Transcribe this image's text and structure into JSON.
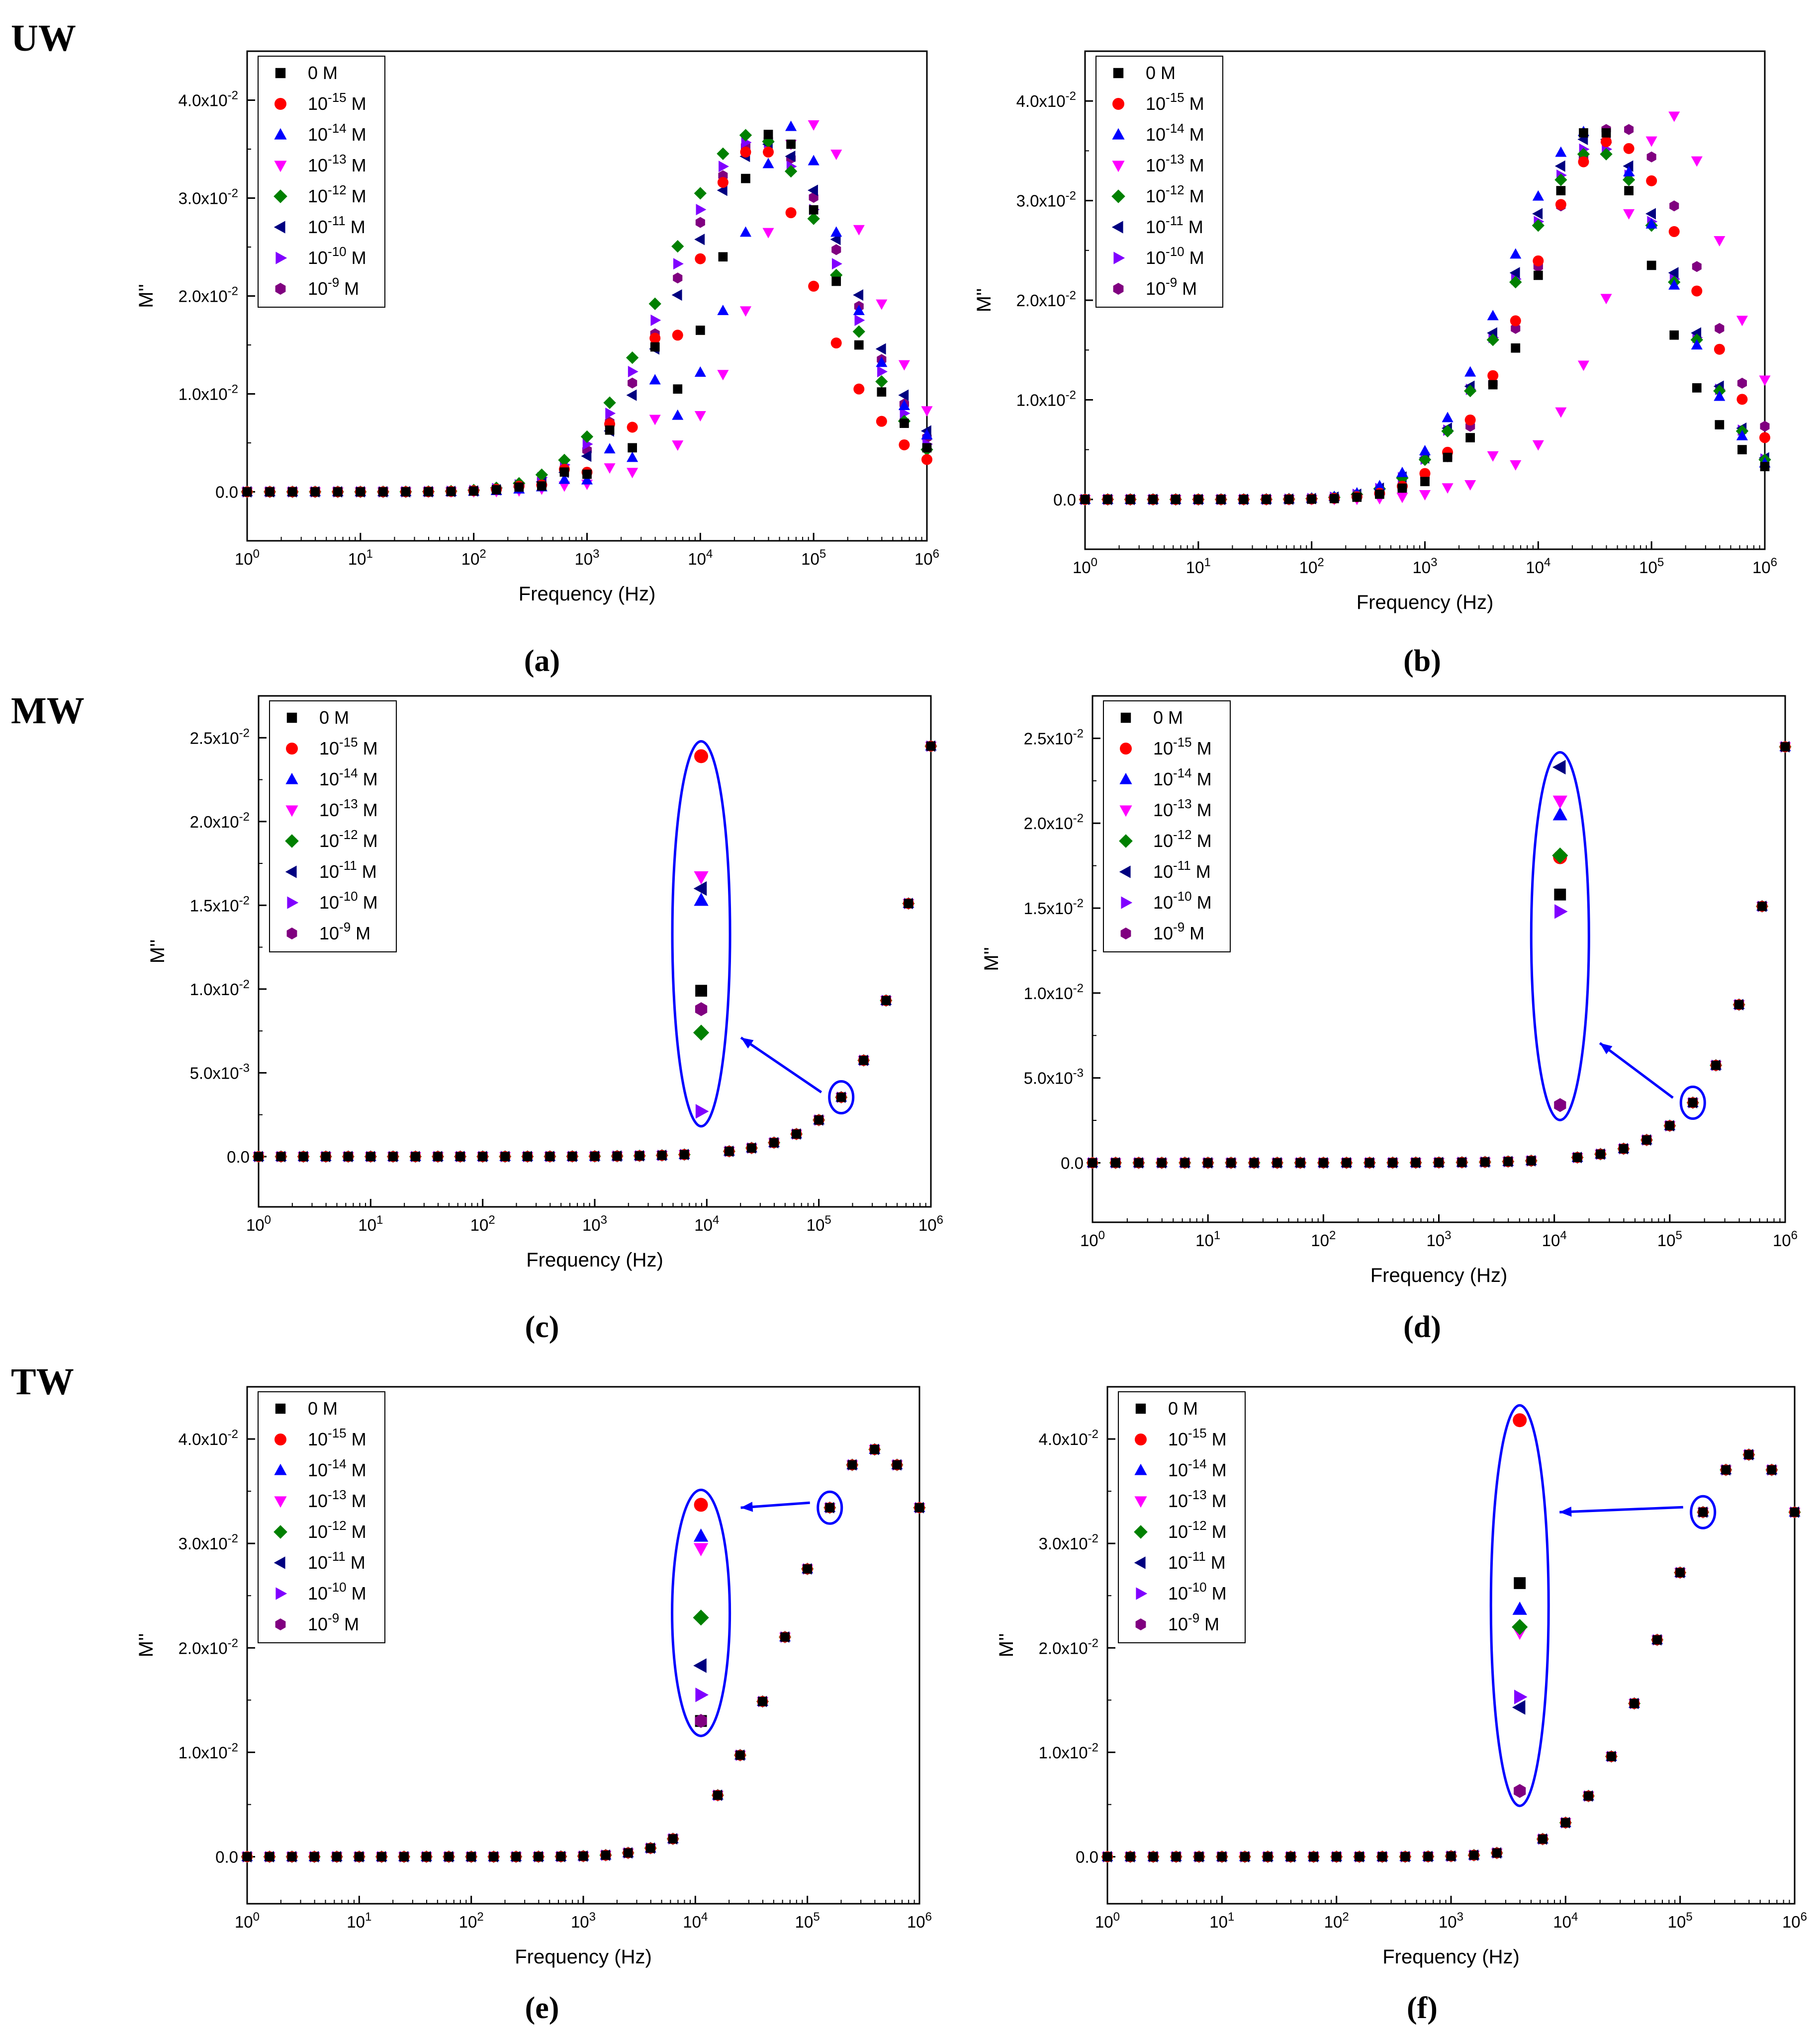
{
  "figure": {
    "row_labels": [
      "UW",
      "MW",
      "TW"
    ],
    "markers": {
      "0 M": {
        "shape": "square",
        "color": "#000000"
      },
      "10^-15 M": {
        "shape": "circle",
        "color": "#ff0000"
      },
      "10^-14 M": {
        "shape": "triangle-up",
        "color": "#0000ff"
      },
      "10^-13 M": {
        "shape": "triangle-down",
        "color": "#ff00ff"
      },
      "10^-12 M": {
        "shape": "diamond",
        "color": "#008000"
      },
      "10^-11 M": {
        "shape": "triangle-left",
        "color": "#000080"
      },
      "10^-10 M": {
        "shape": "triangle-right",
        "color": "#8000ff"
      },
      "10^-9 M": {
        "shape": "hexagon",
        "color": "#800080"
      }
    },
    "annotation_color": "#0000ff"
  },
  "chart_data": [
    {
      "type": "scatter",
      "caption": "(a)",
      "row": "UW",
      "xlabel": "Frequency (Hz)",
      "ylabel": "M''",
      "xscale": "log",
      "xlim": [
        1,
        1000000
      ],
      "ylim": [
        -0.005,
        0.045
      ],
      "yticks": [
        0,
        0.01,
        0.02,
        0.03,
        0.04
      ],
      "ytick_labels": [
        "0.0",
        "1.0x10^-2",
        "2.0x10^-2",
        "3.0x10^-2",
        "4.0x10^-2"
      ],
      "xtick_labels": [
        "10^0",
        "10^1",
        "10^2",
        "10^3",
        "10^4",
        "10^5",
        "10^6"
      ],
      "legend_position": "top-left",
      "model": {
        "kind": "peak",
        "logf_peaks": [
          4.6,
          4.55,
          4.75,
          4.95,
          4.45,
          4.6,
          4.5,
          4.55
        ],
        "heights": [
          0.036,
          0.035,
          0.037,
          0.0375,
          0.0365,
          0.0355,
          0.036,
          0.036
        ],
        "width": 0.75
      },
      "series": [
        {
          "name": "0 M",
          "x_logf": [
            2.6,
            3.0,
            3.4,
            3.8,
            4.0,
            4.2,
            4.4,
            4.6,
            4.8,
            5.0,
            5.2,
            5.4,
            5.6,
            5.8,
            6.0
          ],
          "y": [
            0.0006,
            0.0018,
            0.0045,
            0.0105,
            0.0165,
            0.024,
            0.032,
            0.0365,
            0.0355,
            0.0288,
            0.0215,
            0.015,
            0.0102,
            0.007,
            0.0045
          ]
        },
        {
          "name": "10^-15 M",
          "x_logf": [
            2.6,
            3.0,
            3.4,
            3.8,
            4.0,
            4.2,
            4.4,
            4.6,
            4.8,
            5.0,
            5.2,
            5.4,
            5.6,
            5.8,
            6.0
          ],
          "y": [
            0.0007,
            0.002,
            0.0066,
            0.016,
            0.0238,
            0.0316,
            0.0347,
            0.0347,
            0.0285,
            0.021,
            0.0152,
            0.0105,
            0.0072,
            0.0048,
            0.0033
          ]
        },
        {
          "name": "10^-14 M",
          "x_logf": [
            2.6,
            3.0,
            3.4,
            3.8,
            4.0,
            4.2,
            4.4,
            4.6,
            4.8,
            5.0,
            5.2,
            5.4,
            5.6,
            5.8,
            6.0
          ],
          "y": [
            0.0005,
            0.0012,
            0.0035,
            0.0078,
            0.0122,
            0.0185,
            0.0265,
            0.0335,
            0.0373,
            0.0338,
            0.0265,
            0.0185,
            0.0132,
            0.0088,
            0.0058
          ]
        },
        {
          "name": "10^-13 M",
          "x_logf": [
            2.6,
            3.0,
            3.4,
            3.8,
            4.0,
            4.2,
            4.4,
            4.6,
            4.8,
            5.0,
            5.2,
            5.4,
            5.6,
            5.8,
            6.0
          ],
          "y": [
            0.0003,
            0.0008,
            0.002,
            0.0048,
            0.0078,
            0.012,
            0.0185,
            0.0265,
            0.0355,
            0.0375,
            0.0345,
            0.0268,
            0.0192,
            0.013,
            0.0083
          ]
        }
      ],
      "note": "10^-12 .. 10^-9 M series follow the same trend as listed in model"
    },
    {
      "type": "scatter",
      "caption": "(b)",
      "row": "UW",
      "xlabel": "Frequency (Hz)",
      "ylabel": "M''",
      "xscale": "log",
      "xlim": [
        1,
        1000000
      ],
      "ylim": [
        -0.005,
        0.045
      ],
      "yticks": [
        0,
        0.01,
        0.02,
        0.03,
        0.04
      ],
      "ytick_labels": [
        "0.0",
        "1.0x10^-2",
        "2.0x10^-2",
        "3.0x10^-2",
        "4.0x10^-2"
      ],
      "xtick_labels": [
        "10^0",
        "10^1",
        "10^2",
        "10^3",
        "10^4",
        "10^5",
        "10^6"
      ],
      "legend_position": "top-left",
      "model": {
        "kind": "peak",
        "logf_peaks": [
          4.7,
          4.65,
          4.45,
          5.1,
          4.5,
          4.5,
          4.5,
          4.7
        ],
        "heights": [
          0.037,
          0.036,
          0.037,
          0.0385,
          0.035,
          0.0365,
          0.0355,
          0.0375
        ],
        "width": 0.72
      },
      "series": [
        {
          "name": "0 M",
          "x_logf": [
            3.0,
            3.4,
            3.8,
            4.0,
            4.2,
            4.4,
            4.6,
            4.8,
            5.0,
            5.2,
            5.4,
            5.6,
            5.8,
            6.0
          ],
          "y": [
            0.0018,
            0.0062,
            0.0152,
            0.0225,
            0.031,
            0.0368,
            0.0368,
            0.031,
            0.0235,
            0.0165,
            0.0112,
            0.0075,
            0.005,
            0.0033
          ]
        },
        {
          "name": "10^-13 M",
          "x_logf": [
            3.0,
            3.4,
            3.8,
            4.0,
            4.2,
            4.4,
            4.6,
            4.8,
            5.0,
            5.2,
            5.4,
            5.6,
            5.8,
            6.0
          ],
          "y": [
            0.0005,
            0.0015,
            0.0035,
            0.0055,
            0.0088,
            0.0135,
            0.0202,
            0.0287,
            0.036,
            0.0385,
            0.034,
            0.026,
            0.018,
            0.012
          ]
        }
      ],
      "note": "remaining series follow the same trend as listed in model"
    },
    {
      "type": "scatter",
      "caption": "(c)",
      "row": "MW",
      "xlabel": "Frequency (Hz)",
      "ylabel": "M''",
      "xscale": "log",
      "xlim": [
        1,
        1000000
      ],
      "ylim": [
        -0.003,
        0.0275
      ],
      "yticks": [
        0,
        0.005,
        0.01,
        0.015,
        0.02,
        0.025
      ],
      "ytick_labels": [
        "0.0",
        "5.0x10^-3",
        "1.0x10^-2",
        "1.5x10^-2",
        "2.0x10^-2",
        "2.5x10^-2"
      ],
      "xtick_labels": [
        "10^0",
        "10^1",
        "10^2",
        "10^3",
        "10^4",
        "10^5",
        "10^6"
      ],
      "legend_position": "top-left",
      "model": {
        "kind": "rise",
        "b": 0.0245,
        "p": 1.05
      },
      "inset": {
        "x_logf": 3.95,
        "highlight_logf": 5.2,
        "values": [
          0.0099,
          0.0239,
          0.0153,
          0.0167,
          0.0074,
          0.016,
          0.0027,
          0.0088
        ]
      }
    },
    {
      "type": "scatter",
      "caption": "(d)",
      "row": "MW",
      "xlabel": "Frequency (Hz)",
      "ylabel": "M''",
      "xscale": "log",
      "xlim": [
        1,
        1000000
      ],
      "ylim": [
        -0.0035,
        0.0275
      ],
      "yticks": [
        0,
        0.005,
        0.01,
        0.015,
        0.02,
        0.025
      ],
      "ytick_labels": [
        "0.0",
        "5.0x10^-3",
        "1.0x10^-2",
        "1.5x10^-2",
        "2.0x10^-2",
        "2.5x10^-2"
      ],
      "xtick_labels": [
        "10^0",
        "10^1",
        "10^2",
        "10^3",
        "10^4",
        "10^5",
        "10^6"
      ],
      "legend_position": "top-left",
      "model": {
        "kind": "rise",
        "b": 0.0245,
        "p": 1.05
      },
      "inset": {
        "x_logf": 4.05,
        "highlight_logf": 5.2,
        "values": [
          0.0158,
          0.018,
          0.0205,
          0.0213,
          0.0181,
          0.0233,
          0.0148,
          0.0034
        ]
      }
    },
    {
      "type": "scatter",
      "caption": "(e)",
      "row": "TW",
      "xlabel": "Frequency (Hz)",
      "ylabel": "M''",
      "xscale": "log",
      "xlim": [
        1,
        1000000
      ],
      "ylim": [
        -0.0045,
        0.045
      ],
      "yticks": [
        0,
        0.01,
        0.02,
        0.03,
        0.04
      ],
      "ytick_labels": [
        "0.0",
        "1.0x10^-2",
        "2.0x10^-2",
        "3.0x10^-2",
        "4.0x10^-2"
      ],
      "xtick_labels": [
        "10^0",
        "10^1",
        "10^2",
        "10^3",
        "10^4",
        "10^5",
        "10^6"
      ],
      "legend_position": "top-left",
      "model": {
        "kind": "peak",
        "logf_peaks": [
          5.6,
          5.6,
          5.6,
          5.6,
          5.6,
          5.6,
          5.6,
          5.6
        ],
        "heights": [
          0.039,
          0.039,
          0.039,
          0.039,
          0.039,
          0.039,
          0.039,
          0.039
        ],
        "width": 0.72
      },
      "inset": {
        "x_logf": 4.05,
        "highlight_logf": 5.2,
        "values": [
          0.013,
          0.0337,
          0.0307,
          0.0295,
          0.0229,
          0.0183,
          0.0155,
          0.013
        ]
      }
    },
    {
      "type": "scatter",
      "caption": "(f)",
      "row": "TW",
      "xlabel": "Frequency (Hz)",
      "ylabel": "M''",
      "xscale": "log",
      "xlim": [
        1,
        1000000
      ],
      "ylim": [
        -0.0045,
        0.045
      ],
      "yticks": [
        0,
        0.01,
        0.02,
        0.03,
        0.04
      ],
      "ytick_labels": [
        "0.0",
        "1.0x10^-2",
        "2.0x10^-2",
        "3.0x10^-2",
        "4.0x10^-2"
      ],
      "xtick_labels": [
        "10^0",
        "10^1",
        "10^2",
        "10^3",
        "10^4",
        "10^5",
        "10^6"
      ],
      "legend_position": "top-left",
      "model": {
        "kind": "peak",
        "logf_peaks": [
          5.6,
          5.6,
          5.6,
          5.6,
          5.6,
          5.6,
          5.6,
          5.6
        ],
        "heights": [
          0.0385,
          0.0385,
          0.0385,
          0.0385,
          0.0385,
          0.0385,
          0.0385,
          0.0385
        ],
        "width": 0.72
      },
      "inset": {
        "x_logf": 3.6,
        "highlight_logf": 5.2,
        "values": [
          0.0262,
          0.0418,
          0.0237,
          0.0215,
          0.022,
          0.0143,
          0.0153,
          0.0063
        ]
      }
    }
  ],
  "legend_entries": [
    {
      "base": "0 M",
      "exp": "",
      "unit": ""
    },
    {
      "base": "10",
      "exp": "-15",
      "unit": " M"
    },
    {
      "base": "10",
      "exp": "-14",
      "unit": " M"
    },
    {
      "base": "10",
      "exp": "-13",
      "unit": " M"
    },
    {
      "base": "10",
      "exp": "-12",
      "unit": " M"
    },
    {
      "base": "10",
      "exp": "-11",
      "unit": " M"
    },
    {
      "base": "10",
      "exp": "-10",
      "unit": " M"
    },
    {
      "base": "10",
      "exp": "-9",
      "unit": " M"
    }
  ]
}
